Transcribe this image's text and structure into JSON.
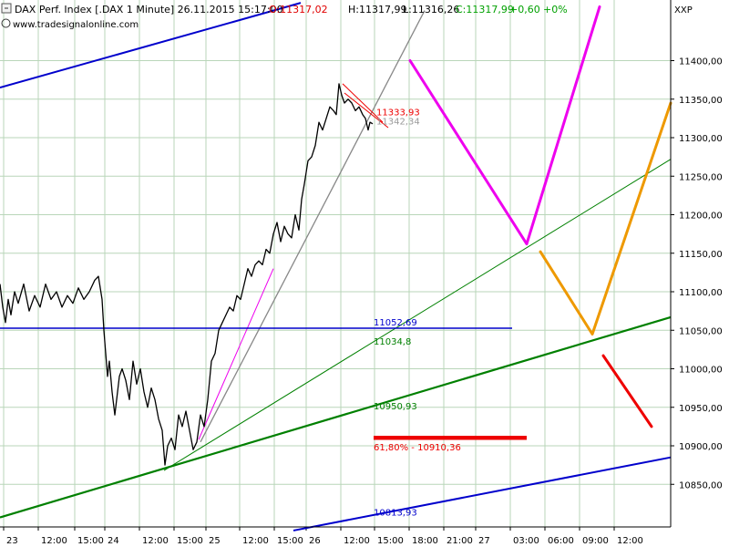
{
  "header": {
    "title": "DAX Perf. Index [.DAX  1 Minute] 26.11.2015 15:17:00",
    "open": "O:11317,02",
    "high": "H:11317,99",
    "low": "L:11316,26",
    "close": "C:11317,99",
    "change": "+0,60",
    "change_pct": "+0%",
    "source": "www.tradesignalonline.com",
    "symbol": "XXP"
  },
  "colors": {
    "up": "#00a000",
    "down": "#e00000",
    "price": "#000000",
    "channel": "#0000cc",
    "support": "#008000",
    "magenta": "#ee00ee",
    "orange": "#ee9900",
    "red": "#ee0000",
    "grid": "#b9d6b9",
    "axis_bg": "#ffffff"
  },
  "chart_data": {
    "type": "line",
    "title": "DAX Perf. Index [.DAX  1 Minute]",
    "y_axis": {
      "side": "right",
      "ticks": [
        10850,
        10900,
        10950,
        11000,
        11050,
        11100,
        11150,
        11200,
        11250,
        11300,
        11350,
        11400
      ],
      "tick_labels": [
        "10850,00",
        "10900,00",
        "10950,00",
        "11000,00",
        "11050,00",
        "11100,00",
        "11150,00",
        "11200,00",
        "11250,00",
        "11300,00",
        "11350,00",
        "11400,00"
      ],
      "range": [
        10790,
        11470
      ]
    },
    "x_axis": {
      "tick_labels": [
        "23",
        "12:00",
        "15:00",
        "24",
        "12:00",
        "15:00",
        "25",
        "12:00",
        "15:00",
        "26",
        "12:00",
        "15:00",
        "18:00",
        "21:00",
        "27",
        "03:00",
        "06:00",
        "09:00",
        "12:00"
      ],
      "day_separators": [
        "24",
        "25",
        "26",
        "27"
      ],
      "grid": true
    },
    "series": [
      {
        "name": "DAX Perf. Index",
        "x": [
          0,
          3,
          6,
          9,
          12,
          16,
          20,
          26,
          32,
          38,
          44,
          50,
          56,
          62,
          68,
          74,
          80,
          86,
          92,
          98,
          104,
          108,
          112,
          114,
          116,
          118,
          120,
          123,
          126,
          128,
          131,
          134,
          138,
          142,
          146,
          150,
          154,
          158,
          162,
          166,
          170,
          174,
          178,
          181,
          184,
          188,
          192,
          196,
          200,
          204,
          208,
          212,
          216,
          220,
          224,
          228,
          232,
          236,
          240,
          244,
          248,
          252,
          256,
          260,
          264,
          268,
          272,
          276,
          280,
          284,
          288,
          292,
          296,
          300,
          304,
          308,
          312,
          316,
          320,
          324,
          328,
          331,
          334,
          338,
          342,
          346,
          350,
          354,
          358,
          362,
          366,
          369,
          372,
          375,
          378,
          382,
          386,
          390,
          394,
          398,
          401,
          404,
          406,
          409
        ],
        "values": [
          11110,
          11080,
          11060,
          11090,
          11070,
          11100,
          11085,
          11110,
          11075,
          11095,
          11080,
          11110,
          11090,
          11100,
          11080,
          11095,
          11085,
          11105,
          11090,
          11100,
          11115,
          11120,
          11090,
          11050,
          11020,
          10990,
          11010,
          10970,
          10940,
          10960,
          10990,
          11000,
          10985,
          10960,
          11010,
          10980,
          11000,
          10970,
          10950,
          10975,
          10960,
          10935,
          10920,
          10875,
          10900,
          10910,
          10895,
          10940,
          10925,
          10945,
          10920,
          10895,
          10905,
          10940,
          10925,
          10960,
          11010,
          11020,
          11050,
          11060,
          11070,
          11080,
          11075,
          11095,
          11090,
          11110,
          11130,
          11120,
          11135,
          11140,
          11135,
          11155,
          11150,
          11175,
          11190,
          11165,
          11185,
          11175,
          11170,
          11200,
          11180,
          11220,
          11240,
          11270,
          11275,
          11290,
          11320,
          11310,
          11325,
          11340,
          11335,
          11330,
          11370,
          11355,
          11345,
          11350,
          11345,
          11335,
          11340,
          11330,
          11325,
          11310,
          11320,
          11318
        ]
      }
    ],
    "trendlines": [
      {
        "name": "blue-channel-top",
        "color": "channel",
        "points": [
          [
            0,
            11365
          ],
          [
            330,
            11475
          ]
        ]
      },
      {
        "name": "blue-channel-bottom",
        "color": "channel",
        "points": [
          [
            322,
            10790
          ],
          [
            736,
            10885
          ]
        ]
      },
      {
        "name": "main-support",
        "color": "support",
        "points": [
          [
            0,
            10807
          ],
          [
            736,
            11067
          ]
        ]
      },
      {
        "name": "thin-support",
        "color": "support",
        "points": [
          [
            180,
            10868
          ],
          [
            736,
            11272
          ]
        ]
      },
      {
        "name": "steep-gray-trend",
        "color": "gray",
        "points": [
          [
            220,
            10905
          ],
          [
            466,
            11465
          ]
        ]
      },
      {
        "name": "magenta-trend",
        "color": "magenta",
        "points": [
          [
            218,
            10908
          ],
          [
            300,
            11130
          ]
        ]
      }
    ],
    "horizontal_levels": [
      {
        "value": 11052.69,
        "label": "11052,69",
        "color": "channel",
        "x_end": 562
      }
    ],
    "level_labels": [
      {
        "value": 11034.8,
        "label": "11034,8",
        "color": "support"
      },
      {
        "value": 10950.93,
        "label": "10950,93",
        "color": "support"
      },
      {
        "value": 10813.93,
        "label": "10813,93",
        "color": "channel"
      },
      {
        "value": 11333.93,
        "label": "11333,93",
        "color": "red"
      },
      {
        "value": 11342.34,
        "label": "11342,34",
        "color": "price"
      }
    ],
    "fibonacci": {
      "ratio": "61,80%",
      "value": 10910.36,
      "label": "61,80% - 10910,36",
      "x_start": 410,
      "x_end": 578
    },
    "scenarios": [
      {
        "name": "magenta-path",
        "color": "magenta",
        "points": [
          [
            450,
            11400
          ],
          [
            578,
            11162
          ],
          [
            658,
            11470
          ]
        ]
      },
      {
        "name": "orange-path",
        "color": "orange",
        "points": [
          [
            593,
            11152
          ],
          [
            650,
            11045
          ],
          [
            736,
            11345
          ]
        ]
      },
      {
        "name": "red-path",
        "color": "red",
        "points": [
          [
            662,
            11017
          ],
          [
            715,
            10925
          ]
        ]
      }
    ],
    "small_red_channel": [
      [
        [
          376,
          11370
        ],
        [
          420,
          11320
        ]
      ],
      [
        [
          378,
          11358
        ],
        [
          426,
          11313
        ]
      ]
    ],
    "grid": true,
    "legend": "none"
  }
}
